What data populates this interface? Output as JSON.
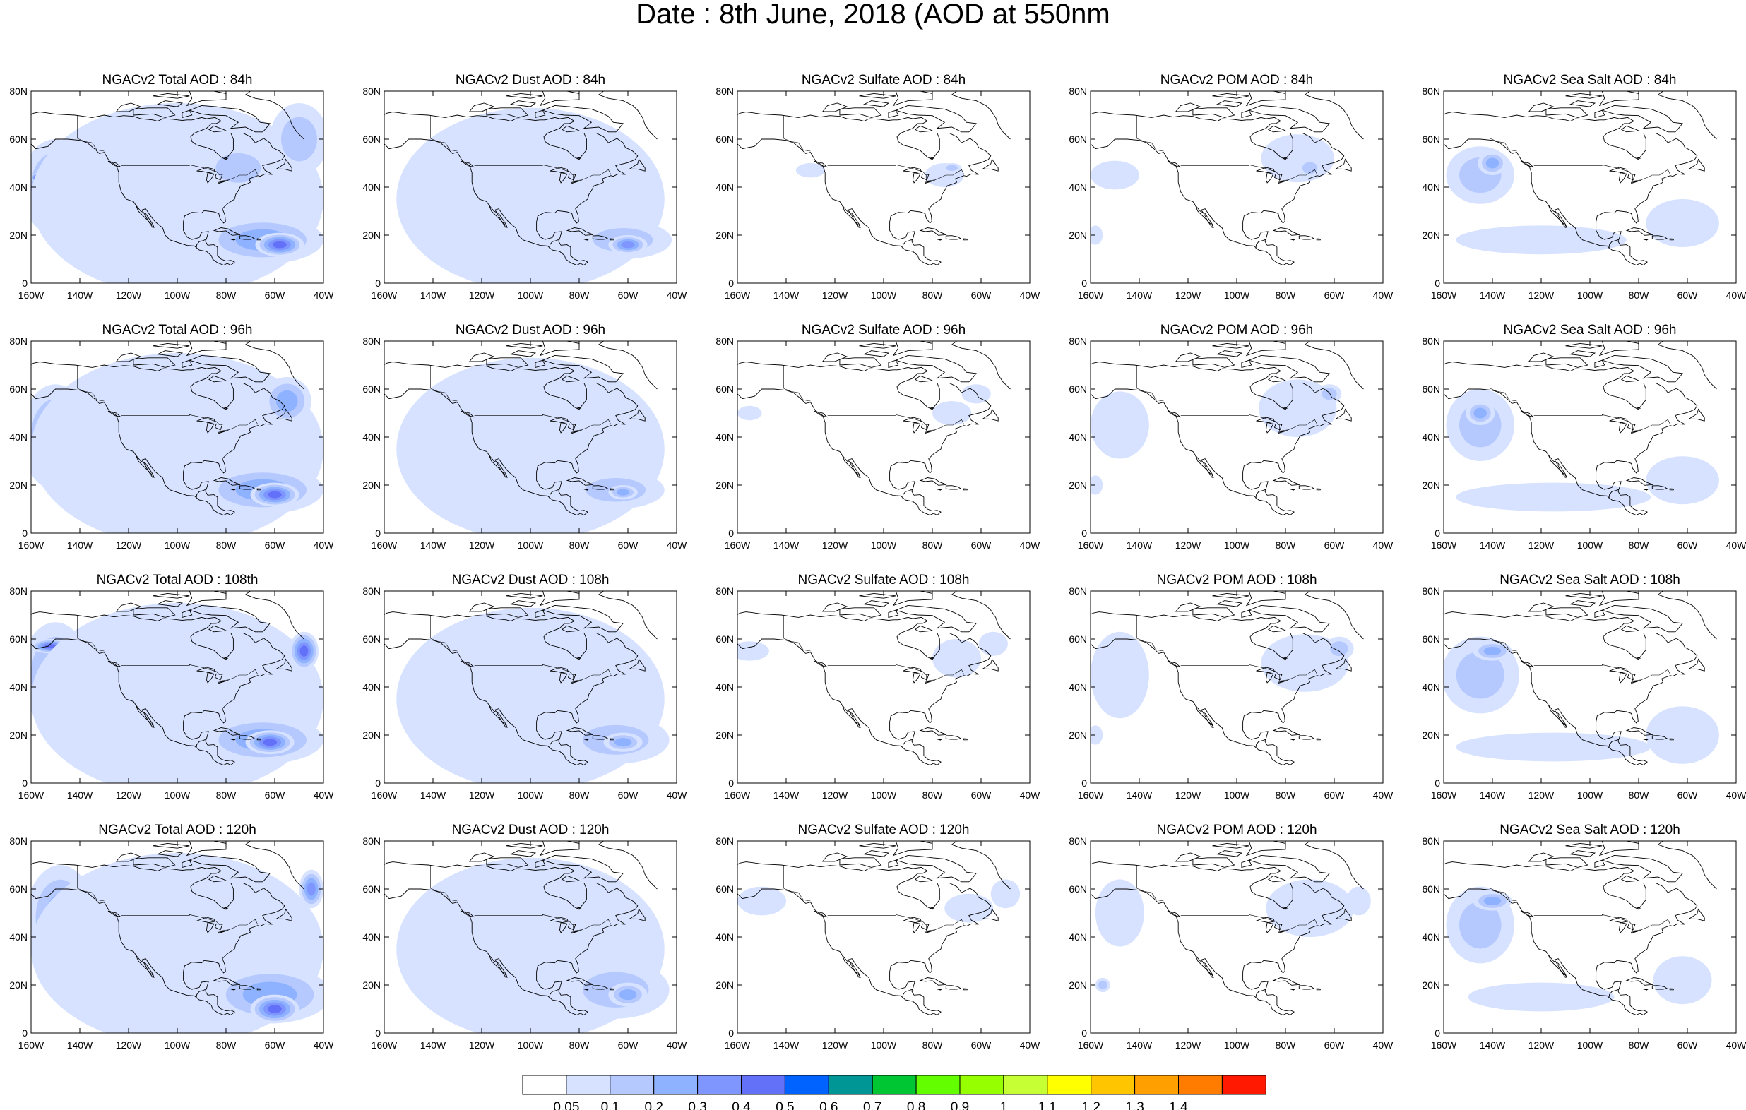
{
  "title": "Date : 8th June, 2018 (AOD at 550nm",
  "rows": [
    {
      "hour": "84h",
      "titles": [
        "NGACv2 Total AOD : 84h",
        "NGACv2 Dust AOD : 84h",
        "NGACv2 Sulfate AOD : 84h",
        "NGACv2 POM AOD : 84h",
        "NGACv2 Sea Salt AOD : 84h"
      ]
    },
    {
      "hour": "96h",
      "titles": [
        "NGACv2 Total AOD : 96h",
        "NGACv2 Dust AOD : 96h",
        "NGACv2 Sulfate AOD : 96h",
        "NGACv2 POM AOD : 96h",
        "NGACv2 Sea Salt AOD : 96h"
      ]
    },
    {
      "hour": "108h",
      "titles": [
        "NGACv2 Total AOD : 108th",
        "NGACv2 Dust AOD : 108h",
        "NGACv2 Sulfate AOD : 108h",
        "NGACv2 POM AOD : 108h",
        "NGACv2 Sea Salt AOD : 108h"
      ]
    },
    {
      "hour": "120h",
      "titles": [
        "NGACv2 Total AOD : 120h",
        "NGACv2 Dust AOD : 120h",
        "NGACv2 Sulfate AOD : 120h",
        "NGACv2 POM AOD : 120h",
        "NGACv2 Sea Salt  AOD : 120h"
      ]
    }
  ],
  "species": [
    "total",
    "dust",
    "sulfate",
    "pom",
    "seasalt"
  ],
  "map_extent": {
    "lon": [
      -160,
      -40
    ],
    "lat": [
      0,
      80
    ]
  },
  "lat_ticks": [
    0,
    20,
    40,
    60,
    80
  ],
  "lat_labels": [
    "0",
    "20N",
    "40N",
    "60N",
    "80N"
  ],
  "lon_ticks": [
    -160,
    -140,
    -120,
    -100,
    -80,
    -60,
    -40
  ],
  "lon_labels": [
    "160W",
    "140W",
    "120W",
    "100W",
    "80W",
    "60W",
    "40W"
  ],
  "colorbar": {
    "colors": [
      "#ffffff",
      "#d6e2ff",
      "#b5c9ff",
      "#8eb2ff",
      "#7f96ff",
      "#6370f8",
      "#0063ff",
      "#009696",
      "#00c633",
      "#63ff00",
      "#96ff00",
      "#c6ff33",
      "#ffff00",
      "#ffc600",
      "#ffa000",
      "#ff7c00",
      "#ff1900"
    ],
    "labels": [
      "0.05",
      "0.1",
      "0.2",
      "0.3",
      "0.4",
      "0.5",
      "0.6",
      "0.7",
      "0.8",
      "0.9",
      "1",
      "1.1",
      "1.2",
      "1.3",
      "1.4"
    ]
  },
  "aod_fields": {
    "total": [
      [
        {
          "lon": -150,
          "lat": 40,
          "rx": 14,
          "ry": 20,
          "level": 3
        },
        {
          "lon": -148,
          "lat": 43,
          "rx": 6,
          "ry": 6,
          "level": 5
        },
        {
          "lon": -157,
          "lat": 44,
          "rx": 3,
          "ry": 2,
          "level": 8
        },
        {
          "lon": -100,
          "lat": 35,
          "rx": 60,
          "ry": 40,
          "level": 1
        },
        {
          "lon": -65,
          "lat": 18,
          "rx": 25,
          "ry": 10,
          "level": 3
        },
        {
          "lon": -58,
          "lat": 16,
          "rx": 10,
          "ry": 5,
          "level": 5
        },
        {
          "lon": -75,
          "lat": 48,
          "rx": 15,
          "ry": 10,
          "level": 2
        },
        {
          "lon": -50,
          "lat": 60,
          "rx": 12,
          "ry": 15,
          "level": 2
        }
      ],
      [
        {
          "lon": -150,
          "lat": 40,
          "rx": 14,
          "ry": 22,
          "level": 3
        },
        {
          "lon": -148,
          "lat": 50,
          "rx": 6,
          "ry": 6,
          "level": 5
        },
        {
          "lon": -149,
          "lat": 50,
          "rx": 3,
          "ry": 2,
          "level": 9
        },
        {
          "lon": -100,
          "lat": 35,
          "rx": 60,
          "ry": 40,
          "level": 1
        },
        {
          "lon": -65,
          "lat": 18,
          "rx": 25,
          "ry": 10,
          "level": 3
        },
        {
          "lon": -60,
          "lat": 16,
          "rx": 10,
          "ry": 5,
          "level": 5
        },
        {
          "lon": -55,
          "lat": 55,
          "rx": 10,
          "ry": 10,
          "level": 3
        }
      ],
      [
        {
          "lon": -150,
          "lat": 45,
          "rx": 14,
          "ry": 22,
          "level": 3
        },
        {
          "lon": -152,
          "lat": 57,
          "rx": 8,
          "ry": 3,
          "level": 5
        },
        {
          "lon": -140,
          "lat": 58,
          "rx": 3,
          "ry": 2,
          "level": 8
        },
        {
          "lon": -100,
          "lat": 35,
          "rx": 60,
          "ry": 40,
          "level": 1
        },
        {
          "lon": -65,
          "lat": 18,
          "rx": 25,
          "ry": 10,
          "level": 3
        },
        {
          "lon": -62,
          "lat": 17,
          "rx": 10,
          "ry": 5,
          "level": 5
        },
        {
          "lon": -48,
          "lat": 55,
          "rx": 6,
          "ry": 8,
          "level": 5
        }
      ],
      [
        {
          "lon": -148,
          "lat": 48,
          "rx": 14,
          "ry": 22,
          "level": 3
        },
        {
          "lon": -140,
          "lat": 58,
          "rx": 8,
          "ry": 4,
          "level": 6
        },
        {
          "lon": -100,
          "lat": 35,
          "rx": 60,
          "ry": 40,
          "level": 1
        },
        {
          "lon": -62,
          "lat": 16,
          "rx": 25,
          "ry": 12,
          "level": 3
        },
        {
          "lon": -60,
          "lat": 10,
          "rx": 10,
          "ry": 6,
          "level": 5
        },
        {
          "lon": -45,
          "lat": 60,
          "rx": 5,
          "ry": 8,
          "level": 4
        }
      ]
    ],
    "dust": [
      [
        {
          "lon": -100,
          "lat": 35,
          "rx": 55,
          "ry": 38,
          "level": 1
        },
        {
          "lon": -62,
          "lat": 18,
          "rx": 20,
          "ry": 8,
          "level": 2
        },
        {
          "lon": -60,
          "lat": 16,
          "rx": 8,
          "ry": 4,
          "level": 4
        }
      ],
      [
        {
          "lon": -100,
          "lat": 35,
          "rx": 55,
          "ry": 38,
          "level": 1
        },
        {
          "lon": -65,
          "lat": 18,
          "rx": 20,
          "ry": 8,
          "level": 2
        },
        {
          "lon": -62,
          "lat": 17,
          "rx": 6,
          "ry": 3,
          "level": 3
        }
      ],
      [
        {
          "lon": -100,
          "lat": 35,
          "rx": 55,
          "ry": 38,
          "level": 1
        },
        {
          "lon": -65,
          "lat": 18,
          "rx": 22,
          "ry": 10,
          "level": 2
        },
        {
          "lon": -62,
          "lat": 17,
          "rx": 8,
          "ry": 4,
          "level": 3
        }
      ],
      [
        {
          "lon": -100,
          "lat": 35,
          "rx": 55,
          "ry": 38,
          "level": 1
        },
        {
          "lon": -65,
          "lat": 18,
          "rx": 22,
          "ry": 12,
          "level": 2
        },
        {
          "lon": -60,
          "lat": 16,
          "rx": 8,
          "ry": 5,
          "level": 3
        }
      ]
    ],
    "sulfate": [
      [
        {
          "lon": -130,
          "lat": 47,
          "rx": 6,
          "ry": 3,
          "level": 1
        },
        {
          "lon": -75,
          "lat": 45,
          "rx": 8,
          "ry": 5,
          "level": 1
        },
        {
          "lon": -72,
          "lat": 48,
          "rx": 4,
          "ry": 2,
          "level": 2
        }
      ],
      [
        {
          "lon": -155,
          "lat": 50,
          "rx": 5,
          "ry": 3,
          "level": 1
        },
        {
          "lon": -72,
          "lat": 50,
          "rx": 8,
          "ry": 5,
          "level": 1
        },
        {
          "lon": -62,
          "lat": 58,
          "rx": 6,
          "ry": 4,
          "level": 1
        }
      ],
      [
        {
          "lon": -155,
          "lat": 55,
          "rx": 8,
          "ry": 4,
          "level": 1
        },
        {
          "lon": -70,
          "lat": 52,
          "rx": 10,
          "ry": 8,
          "level": 1
        },
        {
          "lon": -55,
          "lat": 58,
          "rx": 6,
          "ry": 5,
          "level": 1
        }
      ],
      [
        {
          "lon": -150,
          "lat": 55,
          "rx": 10,
          "ry": 6,
          "level": 1
        },
        {
          "lon": -65,
          "lat": 52,
          "rx": 10,
          "ry": 6,
          "level": 1
        },
        {
          "lon": -50,
          "lat": 58,
          "rx": 6,
          "ry": 6,
          "level": 1
        }
      ]
    ],
    "pom": [
      [
        {
          "lon": -150,
          "lat": 45,
          "rx": 10,
          "ry": 6,
          "level": 1
        },
        {
          "lon": -158,
          "lat": 20,
          "rx": 3,
          "ry": 4,
          "level": 1
        },
        {
          "lon": -75,
          "lat": 52,
          "rx": 15,
          "ry": 10,
          "level": 1
        },
        {
          "lon": -70,
          "lat": 48,
          "rx": 5,
          "ry": 4,
          "level": 2
        }
      ],
      [
        {
          "lon": -148,
          "lat": 45,
          "rx": 12,
          "ry": 14,
          "level": 1
        },
        {
          "lon": -158,
          "lat": 20,
          "rx": 3,
          "ry": 4,
          "level": 1
        },
        {
          "lon": -75,
          "lat": 52,
          "rx": 16,
          "ry": 12,
          "level": 1
        },
        {
          "lon": -62,
          "lat": 58,
          "rx": 5,
          "ry": 4,
          "level": 2
        }
      ],
      [
        {
          "lon": -148,
          "lat": 45,
          "rx": 12,
          "ry": 18,
          "level": 1
        },
        {
          "lon": -158,
          "lat": 20,
          "rx": 3,
          "ry": 4,
          "level": 1
        },
        {
          "lon": -72,
          "lat": 50,
          "rx": 18,
          "ry": 12,
          "level": 1
        },
        {
          "lon": -58,
          "lat": 56,
          "rx": 6,
          "ry": 5,
          "level": 2
        }
      ],
      [
        {
          "lon": -148,
          "lat": 50,
          "rx": 10,
          "ry": 14,
          "level": 1
        },
        {
          "lon": -155,
          "lat": 20,
          "rx": 3,
          "ry": 3,
          "level": 2
        },
        {
          "lon": -70,
          "lat": 52,
          "rx": 18,
          "ry": 12,
          "level": 1
        },
        {
          "lon": -50,
          "lat": 55,
          "rx": 5,
          "ry": 6,
          "level": 1
        }
      ]
    ],
    "seasalt": [
      [
        {
          "lon": -145,
          "lat": 45,
          "rx": 14,
          "ry": 12,
          "level": 2
        },
        {
          "lon": -140,
          "lat": 50,
          "rx": 6,
          "ry": 5,
          "level": 3
        },
        {
          "lon": -120,
          "lat": 18,
          "rx": 35,
          "ry": 6,
          "level": 1
        },
        {
          "lon": -62,
          "lat": 25,
          "rx": 15,
          "ry": 10,
          "level": 1
        }
      ],
      [
        {
          "lon": -145,
          "lat": 45,
          "rx": 14,
          "ry": 15,
          "level": 2
        },
        {
          "lon": -145,
          "lat": 50,
          "rx": 6,
          "ry": 5,
          "level": 3
        },
        {
          "lon": -115,
          "lat": 15,
          "rx": 40,
          "ry": 6,
          "level": 1
        },
        {
          "lon": -62,
          "lat": 22,
          "rx": 15,
          "ry": 10,
          "level": 1
        }
      ],
      [
        {
          "lon": -145,
          "lat": 45,
          "rx": 16,
          "ry": 16,
          "level": 2
        },
        {
          "lon": -140,
          "lat": 55,
          "rx": 8,
          "ry": 4,
          "level": 3
        },
        {
          "lon": -115,
          "lat": 15,
          "rx": 40,
          "ry": 6,
          "level": 1
        },
        {
          "lon": -62,
          "lat": 20,
          "rx": 15,
          "ry": 12,
          "level": 1
        }
      ],
      [
        {
          "lon": -145,
          "lat": 45,
          "rx": 14,
          "ry": 16,
          "level": 2
        },
        {
          "lon": -140,
          "lat": 55,
          "rx": 8,
          "ry": 4,
          "level": 3
        },
        {
          "lon": -120,
          "lat": 15,
          "rx": 30,
          "ry": 6,
          "level": 1
        },
        {
          "lon": -62,
          "lat": 22,
          "rx": 12,
          "ry": 10,
          "level": 1
        }
      ]
    ]
  }
}
